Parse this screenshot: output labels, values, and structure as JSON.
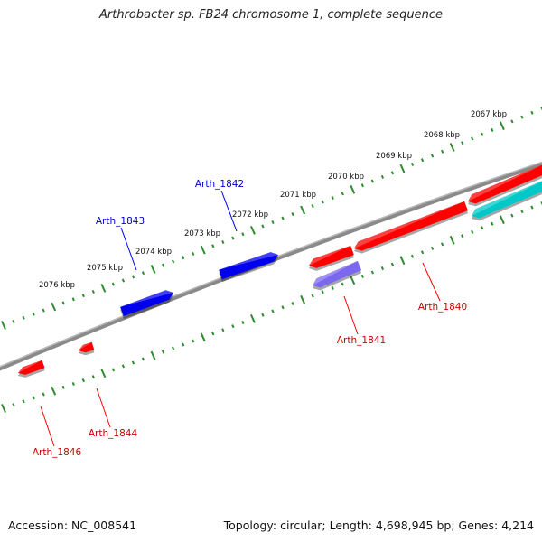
{
  "title": "Arthrobacter sp. FB24 chromosome 1, complete sequence",
  "footer": {
    "accession": "Accession: NC_008541",
    "summary": "Topology: circular; Length: 4,698,945 bp; Genes: 4,214"
  },
  "colors": {
    "backbone": "#8a8a8a",
    "tick": "#2e8b2e",
    "red_gene": "#ff0000",
    "blue_gene": "#0000ee",
    "cyan_gene": "#00c8c8",
    "purple_gene": "#7b68ee",
    "red_label": "#cc0000",
    "blue_label": "#0000cc"
  },
  "kbp_labels": [
    "2067 kbp",
    "2068 kbp",
    "2069 kbp",
    "2070 kbp",
    "2071 kbp",
    "2072 kbp",
    "2073 kbp",
    "2074 kbp",
    "2075 kbp",
    "2076 kbp"
  ],
  "genes": [
    {
      "name": "Arth_1840",
      "color": "red",
      "strand": "reverse",
      "track": "inner"
    },
    {
      "name": "Arth_1841",
      "color": "purple",
      "strand": "reverse",
      "track": "inner"
    },
    {
      "name": "Arth_1842",
      "color": "blue",
      "strand": "forward",
      "track": "outer"
    },
    {
      "name": "Arth_1843",
      "color": "blue",
      "strand": "forward",
      "track": "outer"
    },
    {
      "name": "Arth_1844",
      "color": "red",
      "strand": "reverse",
      "track": "inner"
    },
    {
      "name": "Arth_1846",
      "color": "red",
      "strand": "reverse",
      "track": "inner"
    }
  ],
  "unlabeled_features": [
    {
      "color": "red",
      "strand": "reverse",
      "track": "inner"
    },
    {
      "color": "red",
      "strand": "reverse",
      "track": "inner"
    },
    {
      "color": "cyan",
      "strand": "reverse",
      "track": "inner"
    }
  ]
}
